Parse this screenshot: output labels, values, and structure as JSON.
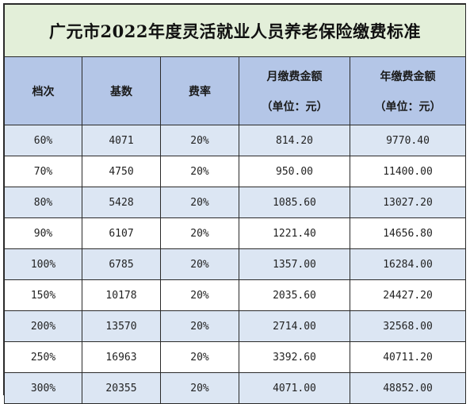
{
  "title": "广元市2022年度灵活就业人员养老保险缴费标准",
  "columns": [
    {
      "line1": "档次",
      "line2": ""
    },
    {
      "line1": "基数",
      "line2": ""
    },
    {
      "line1": "费率",
      "line2": ""
    },
    {
      "line1": "月缴费金额",
      "line2": "（单位：元）"
    },
    {
      "line1": "年缴费金额",
      "line2": "（单位：元）"
    }
  ],
  "rows": [
    [
      "60%",
      "4071",
      "20%",
      "814.20",
      "9770.40"
    ],
    [
      "70%",
      "4750",
      "20%",
      "950.00",
      "11400.00"
    ],
    [
      "80%",
      "5428",
      "20%",
      "1085.60",
      "13027.20"
    ],
    [
      "90%",
      "6107",
      "20%",
      "1221.40",
      "14656.80"
    ],
    [
      "100%",
      "6785",
      "20%",
      "1357.00",
      "16284.00"
    ],
    [
      "150%",
      "10178",
      "20%",
      "2035.60",
      "24427.20"
    ],
    [
      "200%",
      "13570",
      "20%",
      "2714.00",
      "32568.00"
    ],
    [
      "250%",
      "16963",
      "20%",
      "3392.60",
      "40711.20"
    ],
    [
      "300%",
      "20355",
      "20%",
      "4071.00",
      "48852.00"
    ]
  ],
  "colors": {
    "title_bg": "#e3efd9",
    "header_bg": "#b4c6e7",
    "row_stripe": "#dce6f3",
    "row_plain": "#ffffff",
    "border": "#2a2a2a"
  }
}
